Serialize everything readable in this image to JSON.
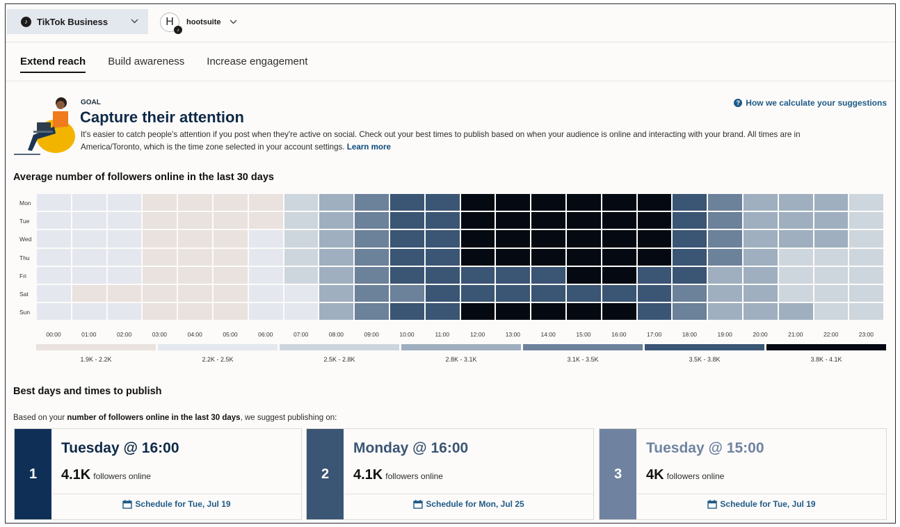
{
  "topbar": {
    "account_label": "TikTok Business",
    "account_icon": "tiktok-icon",
    "profile_initial": "H",
    "profile_name": "hootsuite"
  },
  "tabs": [
    {
      "label": "Extend reach",
      "active": true
    },
    {
      "label": "Build awareness",
      "active": false
    },
    {
      "label": "Increase engagement",
      "active": false
    }
  ],
  "goal": {
    "label": "GOAL",
    "title": "Capture their attention",
    "description": "It's easier to catch people's attention if you post when they're active on social. Check out your best times to publish based on when your audience is online and interacting with your brand. All times are in America/Toronto, which is the time zone selected in your account settings.",
    "learn_more": "Learn more",
    "help_link": "How we calculate your suggestions"
  },
  "heatmap": {
    "title": "Average number of followers online in the last 30 days",
    "days": [
      "Mon",
      "Tue",
      "Wed",
      "Thu",
      "Fri",
      "Sat",
      "Sun"
    ],
    "hours": [
      "00:00",
      "01:00",
      "02:00",
      "03:00",
      "04:00",
      "05:00",
      "06:00",
      "07:00",
      "08:00",
      "09:00",
      "10:00",
      "11:00",
      "12:00",
      "13:00",
      "14:00",
      "15:00",
      "16:00",
      "17:00",
      "18:00",
      "19:00",
      "20:00",
      "21:00",
      "22:00",
      "23:00"
    ],
    "levels": [
      [
        1,
        1,
        1,
        0,
        0,
        0,
        0,
        2,
        3,
        4,
        5,
        5,
        6,
        6,
        6,
        6,
        6,
        6,
        5,
        4,
        3,
        3,
        3,
        2
      ],
      [
        1,
        1,
        1,
        0,
        0,
        0,
        0,
        2,
        3,
        4,
        5,
        5,
        6,
        6,
        6,
        6,
        6,
        6,
        5,
        4,
        3,
        3,
        3,
        2
      ],
      [
        1,
        1,
        1,
        0,
        0,
        0,
        1,
        2,
        3,
        4,
        5,
        5,
        6,
        6,
        6,
        6,
        6,
        6,
        5,
        4,
        3,
        3,
        3,
        2
      ],
      [
        1,
        1,
        1,
        0,
        0,
        0,
        1,
        2,
        3,
        4,
        5,
        5,
        6,
        6,
        6,
        6,
        6,
        6,
        5,
        4,
        3,
        2,
        2,
        2
      ],
      [
        1,
        1,
        1,
        0,
        0,
        0,
        1,
        2,
        3,
        4,
        5,
        5,
        5,
        5,
        5,
        6,
        6,
        5,
        5,
        3,
        3,
        2,
        2,
        2
      ],
      [
        1,
        0,
        0,
        0,
        0,
        0,
        1,
        1,
        3,
        4,
        4,
        5,
        5,
        5,
        5,
        5,
        5,
        5,
        4,
        3,
        3,
        2,
        2,
        2
      ],
      [
        1,
        1,
        1,
        0,
        0,
        0,
        1,
        1,
        3,
        4,
        5,
        5,
        6,
        6,
        6,
        6,
        6,
        5,
        4,
        3,
        3,
        3,
        2,
        2
      ]
    ],
    "legend": [
      {
        "label": "1.9K - 2.2K",
        "color": "#e9e2de"
      },
      {
        "label": "2.2K - 2.5K",
        "color": "#e4e7ee"
      },
      {
        "label": "2.5K - 2.8K",
        "color": "#cdd5dd"
      },
      {
        "label": "2.8K - 3.1K",
        "color": "#9fafbf"
      },
      {
        "label": "3.1K - 3.5K",
        "color": "#6c819a"
      },
      {
        "label": "3.5K - 3.8K",
        "color": "#3b5574"
      },
      {
        "label": "3.8K - 4.1K",
        "color": "#050a12"
      }
    ]
  },
  "best": {
    "title": "Best days and times to publish",
    "subtitle_pre": "Based on your ",
    "subtitle_bold": "number of followers online in the last 30 days",
    "subtitle_post": ", we suggest publishing on:",
    "followers_suffix": "followers online",
    "cards": [
      {
        "rank": "1",
        "title": "Tuesday @ 16:00",
        "count": "4.1K",
        "schedule": "Schedule for Tue, Jul 19",
        "rank_color": "#0f2f57",
        "title_color": "#0e2a47"
      },
      {
        "rank": "2",
        "title": "Monday @ 16:00",
        "count": "4.1K",
        "schedule": "Schedule for Mon, Jul 25",
        "rank_color": "#3b5574",
        "title_color": "#3b5574"
      },
      {
        "rank": "3",
        "title": "Tuesday @ 15:00",
        "count": "4K",
        "schedule": "Schedule for Tue, Jul 19",
        "rank_color": "#6f83a0",
        "title_color": "#6f83a0"
      }
    ]
  },
  "colors": {
    "link": "#1f5a86",
    "brand_dark": "#0e2a47"
  }
}
